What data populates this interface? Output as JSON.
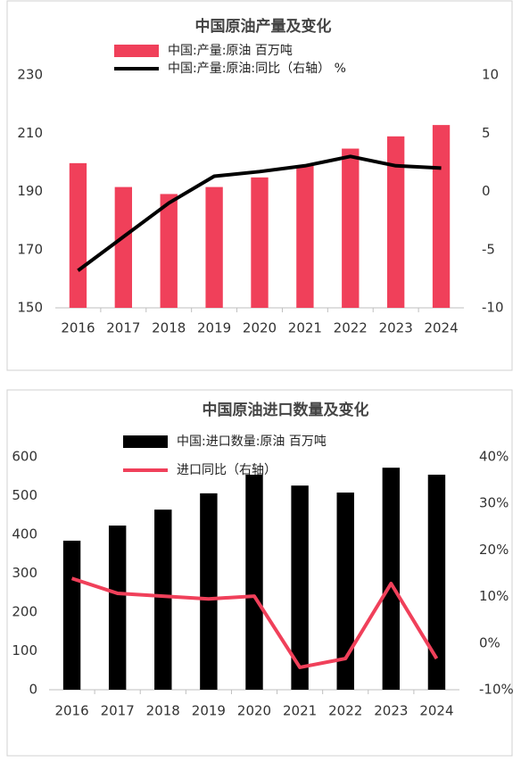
{
  "chart_data": [
    {
      "type": "bar",
      "title": "中国原油产量及变化",
      "categories": [
        "2016",
        "2017",
        "2018",
        "2019",
        "2020",
        "2021",
        "2022",
        "2023",
        "2024"
      ],
      "series": [
        {
          "name": "中国:产量:原油  百万吨",
          "type": "bar",
          "color": "#f0405a",
          "values": [
            199.7,
            191.5,
            189.1,
            191.5,
            194.8,
            198.9,
            204.7,
            208.9,
            212.8
          ]
        },
        {
          "name": "中国:产量:原油:同比（右轴）  %",
          "type": "line",
          "axis": "y2",
          "color": "#000000",
          "values": [
            -6.8,
            -3.9,
            -1.0,
            1.3,
            1.7,
            2.2,
            3.0,
            2.2,
            2.0
          ]
        }
      ],
      "ylim": [
        150,
        230
      ],
      "yticks": [
        150,
        170,
        190,
        210,
        230
      ],
      "y2lim": [
        -10,
        10
      ],
      "y2ticks": [
        -10,
        -5,
        0,
        5,
        10
      ]
    },
    {
      "type": "bar",
      "title": "中国原油进口数量及变化",
      "categories": [
        "2016",
        "2017",
        "2018",
        "2019",
        "2020",
        "2021",
        "2022",
        "2023",
        "2024"
      ],
      "series": [
        {
          "name": "中国:进口数量:原油  百万吨",
          "type": "bar",
          "color": "#000000",
          "values": [
            384,
            423,
            464,
            506,
            554,
            526,
            508,
            572,
            554
          ]
        },
        {
          "name": "进口同比（右轴）",
          "type": "line",
          "axis": "y2",
          "color": "#f0405a",
          "values": [
            13.9,
            10.7,
            10.1,
            9.5,
            10.1,
            -5.2,
            -3.3,
            12.8,
            -3.3
          ]
        }
      ],
      "ylim": [
        0,
        600
      ],
      "yticks": [
        0,
        100,
        200,
        300,
        400,
        500,
        600
      ],
      "y2lim": [
        -10,
        40
      ],
      "y2ticks": [
        {
          "value": -10,
          "label": "-10%"
        },
        {
          "value": 0,
          "label": "0%"
        },
        {
          "value": 10,
          "label": "10%"
        },
        {
          "value": 20,
          "label": "20%"
        },
        {
          "value": 30,
          "label": "30%"
        },
        {
          "value": 40,
          "label": "40%"
        }
      ]
    }
  ]
}
